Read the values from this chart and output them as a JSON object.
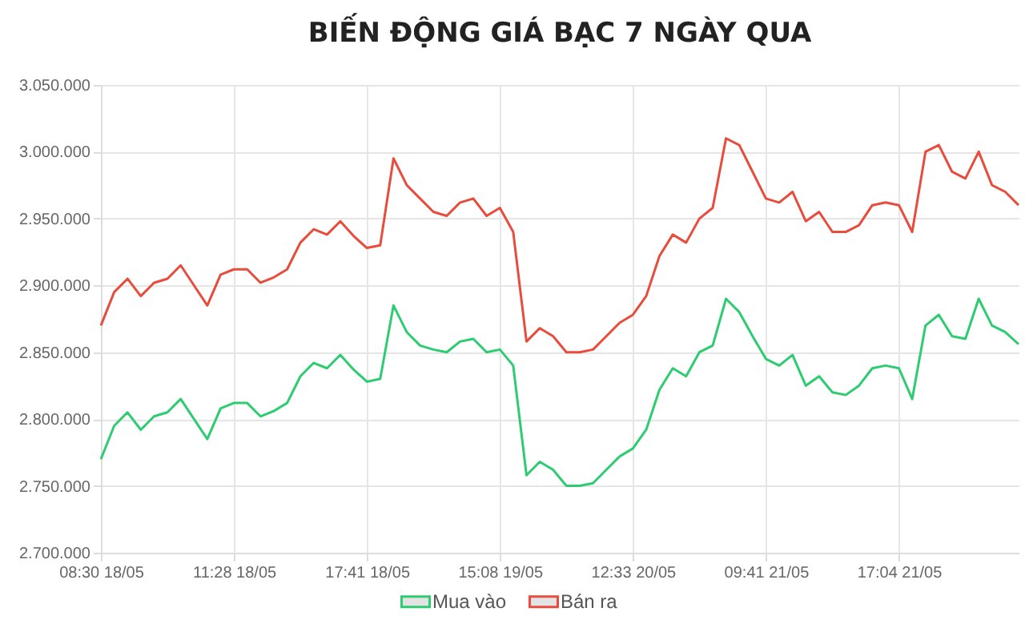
{
  "chart_data": {
    "type": "line",
    "title": "BIẾN ĐỘNG GIÁ BẠC 7 NGÀY QUA",
    "categories": [
      "08:30 18/05",
      null,
      null,
      null,
      null,
      null,
      null,
      null,
      null,
      null,
      "11:28 18/05",
      null,
      null,
      null,
      null,
      null,
      null,
      null,
      null,
      null,
      "17:41 18/05",
      null,
      null,
      null,
      null,
      null,
      null,
      null,
      null,
      null,
      "15:08 19/05",
      null,
      null,
      null,
      null,
      null,
      null,
      null,
      null,
      null,
      "12:33 20/05",
      null,
      null,
      null,
      null,
      null,
      null,
      null,
      null,
      null,
      "09:41 21/05",
      null,
      null,
      null,
      null,
      null,
      null,
      null,
      null,
      null,
      "17:04 21/05",
      null,
      null,
      null,
      null,
      null,
      null,
      null,
      null,
      null
    ],
    "series": [
      {
        "name": "Mua vào",
        "color": "#2ecc71",
        "values": [
          2770000,
          2795000,
          2805000,
          2792000,
          2802000,
          2805000,
          2815000,
          2800000,
          2785000,
          2808000,
          2812000,
          2812000,
          2802000,
          2806000,
          2812000,
          2832000,
          2842000,
          2838000,
          2848000,
          2837000,
          2828000,
          2830000,
          2885000,
          2865000,
          2855000,
          2852000,
          2850000,
          2858000,
          2860000,
          2850000,
          2852000,
          2840000,
          2758000,
          2768000,
          2762000,
          2750000,
          2750000,
          2752000,
          2762000,
          2772000,
          2778000,
          2792000,
          2822000,
          2838000,
          2832000,
          2850000,
          2855000,
          2890000,
          2880000,
          2862000,
          2845000,
          2840000,
          2848000,
          2825000,
          2832000,
          2820000,
          2818000,
          2825000,
          2838000,
          2840000,
          2838000,
          2815000,
          2870000,
          2878000,
          2862000,
          2860000,
          2890000,
          2870000,
          2865000,
          2856000
        ]
      },
      {
        "name": "Bán ra",
        "color": "#e74c3c",
        "values": [
          2870000,
          2895000,
          2905000,
          2892000,
          2902000,
          2905000,
          2915000,
          2900000,
          2885000,
          2908000,
          2912000,
          2912000,
          2902000,
          2906000,
          2912000,
          2932000,
          2942000,
          2938000,
          2948000,
          2937000,
          2928000,
          2930000,
          2995000,
          2975000,
          2965000,
          2955000,
          2952000,
          2962000,
          2965000,
          2952000,
          2958000,
          2940000,
          2858000,
          2868000,
          2862000,
          2850000,
          2850000,
          2852000,
          2862000,
          2872000,
          2878000,
          2892000,
          2922000,
          2938000,
          2932000,
          2950000,
          2958000,
          3010000,
          3005000,
          2985000,
          2965000,
          2962000,
          2970000,
          2948000,
          2955000,
          2940000,
          2940000,
          2945000,
          2960000,
          2962000,
          2960000,
          2940000,
          3000000,
          3005000,
          2985000,
          2980000,
          3000000,
          2975000,
          2970000,
          2960000
        ]
      }
    ],
    "ylim": [
      2700000,
      3050000
    ],
    "yticks": [
      {
        "value": 2700000,
        "label": "2.700.000"
      },
      {
        "value": 2750000,
        "label": "2.750.000"
      },
      {
        "value": 2800000,
        "label": "2.800.000"
      },
      {
        "value": 2850000,
        "label": "2.850.000"
      },
      {
        "value": 2900000,
        "label": "2.900.000"
      },
      {
        "value": 2950000,
        "label": "2.950.000"
      },
      {
        "value": 3000000,
        "label": "3.000.000"
      },
      {
        "value": 3050000,
        "label": "3.050.000"
      }
    ],
    "grid": true,
    "legend": "bottom",
    "marker": "none",
    "line_style": "solid"
  }
}
